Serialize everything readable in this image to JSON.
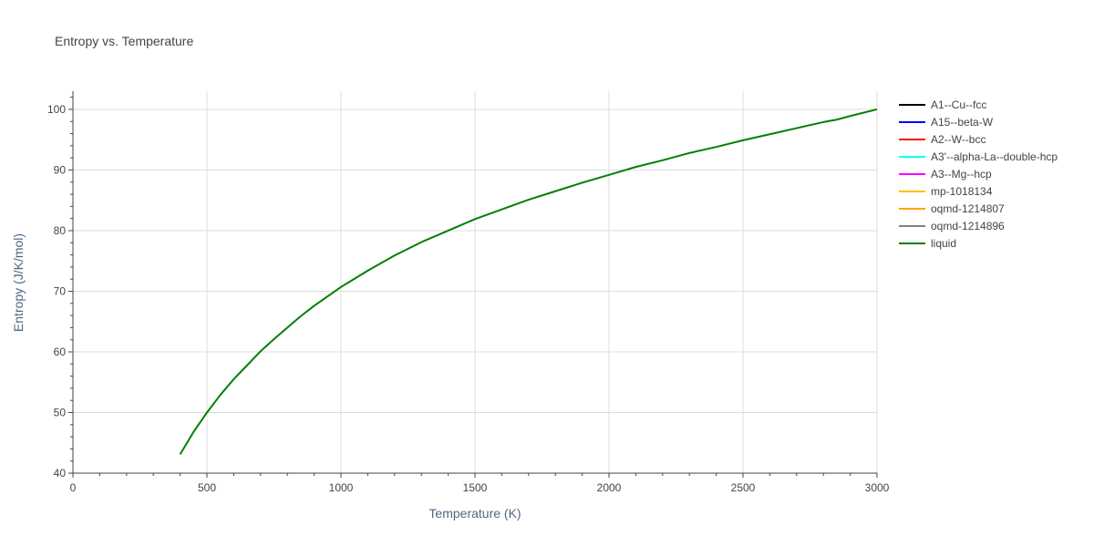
{
  "chart_data": {
    "type": "line",
    "title": "Entropy vs. Temperature",
    "xlabel": "Temperature (K)",
    "ylabel": "Entropy (J/K/mol)",
    "xlim": [
      0,
      3000
    ],
    "ylim": [
      40,
      103
    ],
    "x_ticks": [
      0,
      500,
      1000,
      1500,
      2000,
      2500,
      3000
    ],
    "y_ticks": [
      40,
      50,
      60,
      70,
      80,
      90,
      100
    ],
    "x_minor_step": 100,
    "y_minor_step": 2,
    "grid": true,
    "legend_position": "right",
    "series": [
      {
        "name": "A1--Cu--fcc",
        "color": "#000000",
        "x": [],
        "y": []
      },
      {
        "name": "A15--beta-W",
        "color": "#0000ff",
        "x": [],
        "y": []
      },
      {
        "name": "A2--W--bcc",
        "color": "#ff0000",
        "x": [],
        "y": []
      },
      {
        "name": "A3'--alpha-La--double-hcp",
        "color": "#00ffff",
        "x": [],
        "y": []
      },
      {
        "name": "A3--Mg--hcp",
        "color": "#ff00ff",
        "x": [],
        "y": []
      },
      {
        "name": "mp-1018134",
        "color": "#ffbf00",
        "x": [],
        "y": []
      },
      {
        "name": "oqmd-1214807",
        "color": "#ffa500",
        "x": [],
        "y": []
      },
      {
        "name": "oqmd-1214896",
        "color": "#808080",
        "x": [],
        "y": []
      },
      {
        "name": "liquid",
        "color": "#008000",
        "x": [
          400,
          450,
          500,
          550,
          600,
          650,
          700,
          750,
          800,
          850,
          900,
          1000,
          1100,
          1200,
          1300,
          1400,
          1500,
          1600,
          1700,
          1800,
          1900,
          2000,
          2100,
          2200,
          2300,
          2400,
          2500,
          2600,
          2700,
          2800,
          2850,
          2900,
          3000
        ],
        "y": [
          43.1,
          46.8,
          50.0,
          52.9,
          55.5,
          57.8,
          60.1,
          62.1,
          64.0,
          65.9,
          67.6,
          70.7,
          73.4,
          75.9,
          78.1,
          80.0,
          81.9,
          83.5,
          85.1,
          86.5,
          87.9,
          89.2,
          90.5,
          91.6,
          92.8,
          93.8,
          94.9,
          95.9,
          96.9,
          97.9,
          98.3,
          98.9,
          100.0
        ]
      }
    ]
  }
}
